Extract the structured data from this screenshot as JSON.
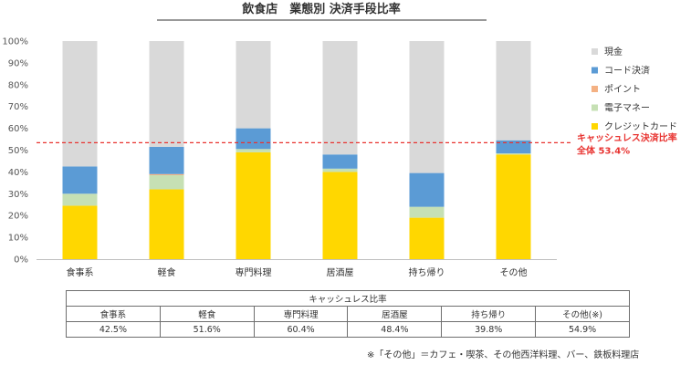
{
  "chart_data": {
    "type": "bar",
    "stacked": true,
    "title": "飲食店　業態別 決済手段比率",
    "categories": [
      "食事系",
      "軽食",
      "専門料理",
      "居酒屋",
      "持ち帰り",
      "その他"
    ],
    "ylim": [
      0,
      100
    ],
    "yticks": [
      "0%",
      "10%",
      "20%",
      "30%",
      "40%",
      "50%",
      "60%",
      "70%",
      "80%",
      "90%",
      "100%"
    ],
    "series": [
      {
        "name": "クレジットカード",
        "color": "#ffd700",
        "values": [
          24.5,
          32,
          49,
          40,
          19,
          48
        ]
      },
      {
        "name": "電子マネー",
        "color": "#c6e0b4",
        "values": [
          5.5,
          6.5,
          1.5,
          1.5,
          5,
          0.5
        ]
      },
      {
        "name": "ポイント",
        "color": "#f4b183",
        "values": [
          0,
          0.5,
          0,
          0,
          0,
          0
        ]
      },
      {
        "name": "コード決済",
        "color": "#5b9bd5",
        "values": [
          12.5,
          12.5,
          9.5,
          6.5,
          15.5,
          6
        ]
      },
      {
        "name": "現金",
        "color": "#d9d9d9",
        "values": [
          57.5,
          48.5,
          40,
          52,
          60.5,
          45.5
        ]
      }
    ],
    "reference_line": {
      "value": 53.4,
      "color": "#e8322f",
      "label_line1": "キャッシュレス決済比率",
      "label_line2": "全体 53.4%"
    },
    "legend_position": "right",
    "grid": false
  },
  "table": {
    "header": "キャッシュレス比率",
    "categories": [
      "食事系",
      "軽食",
      "専門料理",
      "居酒屋",
      "持ち帰り",
      "その他(※)"
    ],
    "values": [
      "42.5%",
      "51.6%",
      "60.4%",
      "48.4%",
      "39.8%",
      "54.9%"
    ]
  },
  "footnote": "※「その他」＝カフェ・喫茶、その他西洋料理、バー、鉄板料理店"
}
